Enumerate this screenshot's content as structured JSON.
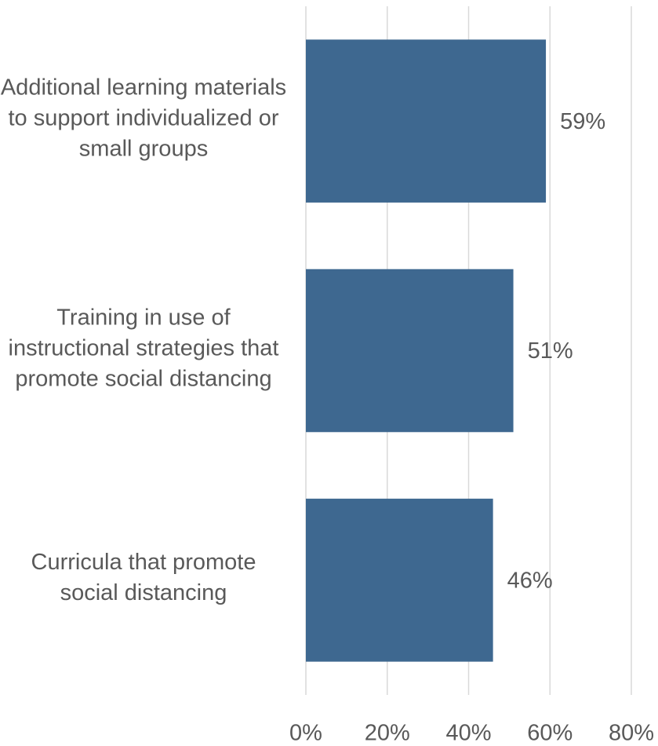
{
  "chart_data": {
    "type": "bar",
    "orientation": "horizontal",
    "categories": [
      "Additional learning materials  to support individualized or small groups",
      "Training in use of instructional strategies that promote social distancing",
      "Curricula that promote social distancing"
    ],
    "values": [
      59,
      51,
      46
    ],
    "value_labels": [
      "59%",
      "51%",
      "46%"
    ],
    "color": "#3e6890",
    "xlim": [
      0,
      80
    ],
    "xticks": [
      {
        "value": 0,
        "label": "0%"
      },
      {
        "value": 20,
        "label": "20%"
      },
      {
        "value": 40,
        "label": "40%"
      },
      {
        "value": 60,
        "label": "60%"
      },
      {
        "value": 80,
        "label": "80%"
      }
    ],
    "grid": true
  }
}
